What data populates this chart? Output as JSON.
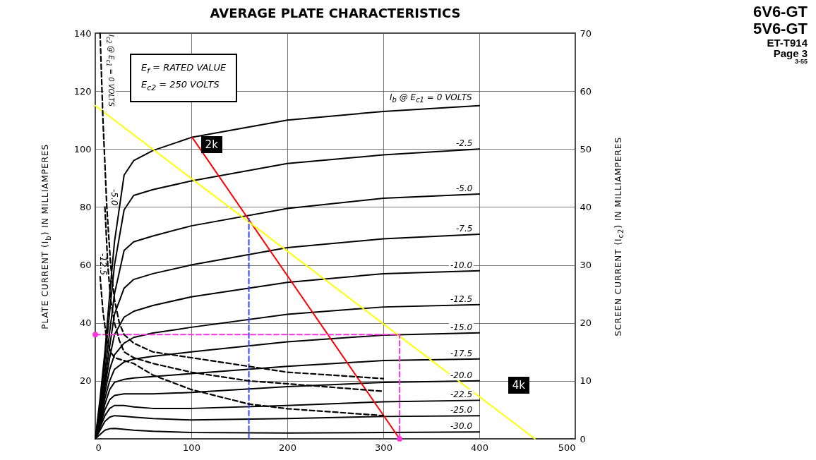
{
  "chart_data": {
    "type": "line",
    "title": "AVERAGE PLATE CHARACTERISTICS",
    "ylabel": "PLATE CURRENT (I$_{b}$) IN MILLIAMPERES",
    "y2label": "SCREEN CURRENT (I$_{c2}$) IN MILLIAMPERES",
    "annotations": [
      "E$_{f}$ = RATED VALUE",
      "E$_{c2}$ = 250 VOLTS",
      "6V6-GT",
      "5V6-GT",
      "ET-T914",
      "Page 3",
      "3-55"
    ],
    "xlim": [
      0,
      500
    ],
    "xticks": [
      0,
      100,
      200,
      300,
      400,
      500
    ],
    "ylim": [
      0,
      140
    ],
    "yticks": [
      20,
      40,
      60,
      80,
      100,
      120,
      140
    ],
    "y2lim": [
      0,
      70
    ],
    "y2ticks": [
      0,
      10,
      20,
      30,
      40,
      50,
      60,
      70
    ],
    "grid": true,
    "series": [
      {
        "name": "I$_{b}$ @ E$_{c1}$ = 0 VOLTS",
        "color": "#000000",
        "x": [
          0,
          5,
          10,
          15,
          20,
          30,
          40,
          60,
          100,
          200,
          300,
          400
        ],
        "values": [
          0,
          14,
          30,
          50,
          68,
          91,
          96,
          99.5,
          104,
          110,
          113,
          115
        ]
      },
      {
        "name": "-2.5",
        "color": "#000000",
        "x": [
          0,
          5,
          10,
          15,
          20,
          30,
          40,
          60,
          100,
          200,
          300,
          400
        ],
        "values": [
          0,
          12,
          27,
          44,
          60,
          79,
          84,
          86,
          89,
          95,
          98,
          100
        ]
      },
      {
        "name": "-5.0",
        "color": "#000000",
        "x": [
          0,
          5,
          10,
          15,
          20,
          30,
          40,
          60,
          100,
          200,
          300,
          400
        ],
        "values": [
          0,
          10,
          23,
          37,
          50,
          65,
          68,
          70,
          73.5,
          79.5,
          83,
          84.5
        ]
      },
      {
        "name": "-7.5",
        "color": "#000000",
        "x": [
          0,
          5,
          10,
          15,
          20,
          30,
          40,
          60,
          100,
          200,
          300,
          400
        ],
        "values": [
          0,
          9,
          20,
          32,
          43,
          52,
          55,
          57,
          60,
          66,
          69,
          70.6
        ]
      },
      {
        "name": "-10.0",
        "color": "#000000",
        "x": [
          0,
          5,
          10,
          15,
          20,
          30,
          40,
          60,
          100,
          200,
          300,
          400
        ],
        "values": [
          0,
          8,
          18,
          28,
          36,
          42,
          44,
          46,
          49,
          54,
          57,
          58
        ]
      },
      {
        "name": "-12.5",
        "color": "#000000",
        "x": [
          0,
          5,
          10,
          15,
          20,
          30,
          40,
          60,
          100,
          200,
          300,
          400
        ],
        "values": [
          0,
          7,
          16,
          24,
          29,
          33,
          35,
          36.5,
          38.5,
          43,
          45.5,
          46.3
        ]
      },
      {
        "name": "-15.0",
        "color": "#000000",
        "x": [
          0,
          5,
          10,
          15,
          20,
          30,
          40,
          60,
          100,
          200,
          300,
          400
        ],
        "values": [
          0,
          6,
          14,
          20,
          24,
          26.5,
          27.5,
          28.5,
          30,
          33.5,
          35.8,
          36.6
        ]
      },
      {
        "name": "-17.5",
        "color": "#000000",
        "x": [
          0,
          5,
          10,
          15,
          20,
          30,
          40,
          60,
          100,
          200,
          300,
          400
        ],
        "values": [
          0,
          5,
          12,
          17,
          19.5,
          20.5,
          21,
          21.5,
          22.5,
          25,
          27,
          27.6
        ]
      },
      {
        "name": "-20.0",
        "color": "#000000",
        "x": [
          0,
          5,
          10,
          15,
          20,
          30,
          40,
          60,
          100,
          200,
          300,
          400
        ],
        "values": [
          0,
          4.5,
          10,
          13.5,
          15,
          15.5,
          15.5,
          15.5,
          16,
          18,
          19.5,
          20
        ]
      },
      {
        "name": "-22.5",
        "color": "#000000",
        "x": [
          0,
          5,
          10,
          15,
          20,
          30,
          40,
          60,
          100,
          200,
          300,
          400
        ],
        "values": [
          0,
          4,
          8,
          10.5,
          11.5,
          11.5,
          11,
          10.5,
          10.5,
          11.5,
          12.8,
          13.3
        ]
      },
      {
        "name": "-25.0",
        "color": "#000000",
        "x": [
          0,
          5,
          10,
          15,
          20,
          30,
          40,
          60,
          100,
          200,
          300,
          400
        ],
        "values": [
          0,
          3,
          6,
          7.5,
          8,
          7.8,
          7.5,
          7,
          6.5,
          7,
          7.7,
          8
        ]
      },
      {
        "name": "-30.0",
        "color": "#000000",
        "x": [
          0,
          5,
          10,
          15,
          20,
          30,
          40,
          60,
          100,
          200,
          300,
          400
        ],
        "values": [
          0,
          1.5,
          3,
          3.5,
          3.6,
          3.3,
          3,
          2.6,
          2.2,
          2,
          2.2,
          2.4
        ]
      },
      {
        "name": "I$_{c2}$ @ E$_{c1}$ = 0 VOLTS",
        "color": "#000000",
        "axis": "y2",
        "line_style": "dashed",
        "x": [
          5,
          8,
          12,
          16,
          20,
          25,
          30,
          40,
          60,
          100,
          160,
          200,
          300
        ],
        "values": [
          70,
          55,
          40,
          30,
          24,
          20,
          18,
          16.5,
          15,
          14,
          12.5,
          11.5,
          10.4
        ]
      },
      {
        "name": "-5.0",
        "color": "#000000",
        "axis": "y2",
        "line_style": "dashed",
        "x": [
          10,
          13,
          16,
          20,
          25,
          30,
          40,
          60,
          100,
          160,
          200,
          300
        ],
        "values": [
          40,
          30,
          24,
          20,
          17,
          15,
          14,
          13,
          11.5,
          10,
          9.5,
          8.2
        ]
      },
      {
        "name": "-12.5",
        "color": "#000000",
        "axis": "y2",
        "line_style": "dashed",
        "x": [
          5,
          8,
          12,
          16,
          20,
          30,
          40,
          60,
          100,
          160,
          200,
          300
        ],
        "values": [
          28,
          22,
          17,
          15,
          14,
          13.5,
          13,
          11,
          8.5,
          6,
          5.2,
          4
        ]
      },
      {
        "name": "2k",
        "color": "#ff0000",
        "x": [
          101,
          317
        ],
        "values": [
          104,
          0
        ]
      },
      {
        "name": "4k",
        "color": "#ffff00",
        "x": [
          0,
          458
        ],
        "values": [
          115,
          0
        ]
      },
      {
        "color": "#3344ee",
        "line_style": "dashed",
        "x": [
          160,
          160
        ],
        "values": [
          0,
          76
        ]
      },
      {
        "color": "#ff33dd",
        "line_style": "dashed",
        "x": [
          0,
          317,
          317
        ],
        "values": [
          36,
          36,
          0
        ]
      },
      {
        "type": "scatter",
        "color": "#ff33dd",
        "marker": "circle",
        "x": [
          0,
          317
        ],
        "values": [
          36,
          0
        ]
      }
    ]
  }
}
